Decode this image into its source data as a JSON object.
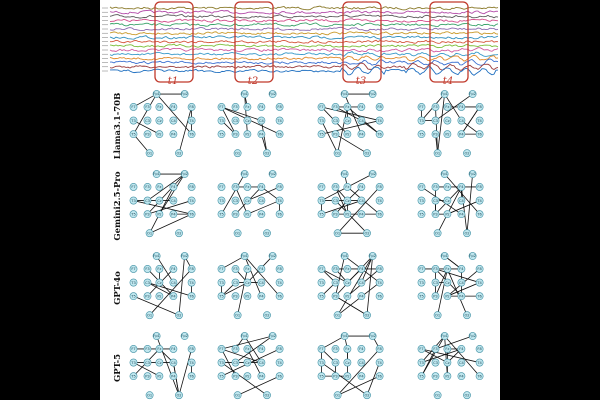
{
  "figure": {
    "background": "#000000",
    "panel_color": "#ffffff",
    "highlight_color": "#c0392b",
    "node_fill": "#bfe6ee",
    "node_stroke": "#3f8fa3",
    "edge_color": "#111111",
    "eeg_colors": [
      "#8a7a2a",
      "#b24aa8",
      "#5a5a5a",
      "#d24b8a",
      "#3aa36a",
      "#8c6ab0",
      "#c99a2a",
      "#2f8fbf",
      "#d4553a",
      "#7bbf3a",
      "#d05a9e",
      "#3a9ac9",
      "#e08a2a",
      "#3a6fd0",
      "#9a3a3a",
      "#1f6fc0"
    ],
    "windows": [
      {
        "label": "t1"
      },
      {
        "label": "t2"
      },
      {
        "label": "t3"
      },
      {
        "label": "t4"
      }
    ],
    "models": [
      {
        "label": "Llama3.1-70B"
      },
      {
        "label": "Gemini2.5-Pro"
      },
      {
        "label": "GPT-4o"
      },
      {
        "label": "GPT-5"
      }
    ],
    "node_labels": [
      "Fp1",
      "Fp2",
      "F7",
      "F3",
      "Fz",
      "F4",
      "F8",
      "T3",
      "C3",
      "Cz",
      "C4",
      "T4",
      "T5",
      "P3",
      "Pz",
      "P4",
      "T6",
      "O1",
      "O2"
    ]
  }
}
